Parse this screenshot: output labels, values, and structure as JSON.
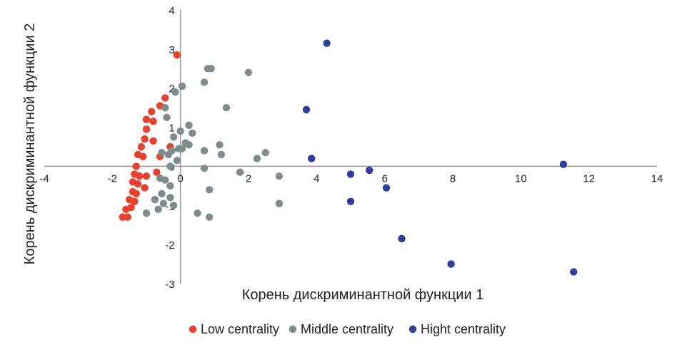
{
  "chart_data": {
    "type": "scatter",
    "title": "",
    "xlabel": "Корень дискриминантной функции 1",
    "ylabel": "Корень дискриминантной функции 2",
    "xlim": [
      -4,
      14
    ],
    "ylim": [
      -3,
      4
    ],
    "x_ticks": [
      "-4",
      "-2",
      "0",
      "2",
      "4",
      "6",
      "8",
      "10",
      "12",
      "14"
    ],
    "y_ticks": [
      "-3",
      "-2",
      "-1",
      "0",
      "1",
      "2",
      "3",
      "4"
    ],
    "legend_position": "bottom",
    "series": [
      {
        "name": "Low centrality",
        "color": "#e8412e",
        "points": [
          [
            -0.1,
            2.85
          ],
          [
            -0.45,
            1.75
          ],
          [
            -0.6,
            1.55
          ],
          [
            -0.85,
            1.4
          ],
          [
            -0.8,
            1.15
          ],
          [
            -1.0,
            0.95
          ],
          [
            -1.05,
            0.7
          ],
          [
            -0.8,
            0.65
          ],
          [
            -1.15,
            0.5
          ],
          [
            -1.25,
            0.3
          ],
          [
            -1.1,
            0.25
          ],
          [
            -1.3,
            0.0
          ],
          [
            -1.35,
            -0.2
          ],
          [
            -1.2,
            -0.25
          ],
          [
            -1.0,
            -0.25
          ],
          [
            -1.4,
            -0.4
          ],
          [
            -1.25,
            -0.45
          ],
          [
            -1.4,
            -0.65
          ],
          [
            -1.3,
            -0.7
          ],
          [
            -1.05,
            -0.55
          ],
          [
            -1.5,
            -0.85
          ],
          [
            -1.35,
            -0.9
          ],
          [
            -1.45,
            -1.05
          ],
          [
            -1.6,
            -1.1
          ],
          [
            -1.55,
            -1.3
          ],
          [
            -1.7,
            -1.3
          ],
          [
            -0.7,
            -0.15
          ],
          [
            -0.3,
            0.5
          ],
          [
            -0.6,
            0.25
          ],
          [
            -1.0,
            1.2
          ]
        ]
      },
      {
        "name": "Middle centrality",
        "color": "#7f8c8d",
        "points": [
          [
            0.8,
            2.5
          ],
          [
            0.9,
            2.5
          ],
          [
            2.0,
            2.4
          ],
          [
            0.7,
            2.15
          ],
          [
            0.05,
            2.05
          ],
          [
            -0.15,
            1.9
          ],
          [
            -0.45,
            1.5
          ],
          [
            1.35,
            1.5
          ],
          [
            -0.4,
            1.25
          ],
          [
            0.25,
            1.05
          ],
          [
            0.0,
            0.9
          ],
          [
            0.35,
            0.85
          ],
          [
            -0.2,
            0.75
          ],
          [
            0.15,
            0.6
          ],
          [
            0.25,
            0.55
          ],
          [
            1.15,
            0.55
          ],
          [
            0.7,
            0.4
          ],
          [
            -0.05,
            0.45
          ],
          [
            0.05,
            0.45
          ],
          [
            -0.25,
            0.4
          ],
          [
            -0.55,
            0.35
          ],
          [
            -0.35,
            0.3
          ],
          [
            2.5,
            0.35
          ],
          [
            1.2,
            0.3
          ],
          [
            2.25,
            0.2
          ],
          [
            -0.1,
            0.15
          ],
          [
            -0.3,
            0.0
          ],
          [
            0.7,
            -0.05
          ],
          [
            1.75,
            -0.15
          ],
          [
            2.9,
            -0.25
          ],
          [
            -0.6,
            -0.3
          ],
          [
            -0.45,
            -0.35
          ],
          [
            -0.3,
            -0.5
          ],
          [
            0.85,
            -0.6
          ],
          [
            -0.55,
            -0.7
          ],
          [
            -0.3,
            -0.8
          ],
          [
            -0.75,
            -0.85
          ],
          [
            -0.2,
            -1.0
          ],
          [
            2.9,
            -0.95
          ],
          [
            -0.65,
            -1.1
          ],
          [
            -1.0,
            -1.2
          ],
          [
            0.5,
            -1.2
          ],
          [
            0.85,
            -1.3
          ],
          [
            -0.5,
            -0.95
          ]
        ]
      },
      {
        "name": "Hight centrality",
        "color": "#2e3e9e",
        "points": [
          [
            4.3,
            3.15
          ],
          [
            3.7,
            1.45
          ],
          [
            3.85,
            0.2
          ],
          [
            11.25,
            0.05
          ],
          [
            5.55,
            -0.1
          ],
          [
            5.0,
            -0.2
          ],
          [
            6.05,
            -0.55
          ],
          [
            5.0,
            -0.9
          ],
          [
            6.5,
            -1.85
          ],
          [
            7.95,
            -2.5
          ],
          [
            11.55,
            -2.7
          ]
        ]
      }
    ]
  }
}
